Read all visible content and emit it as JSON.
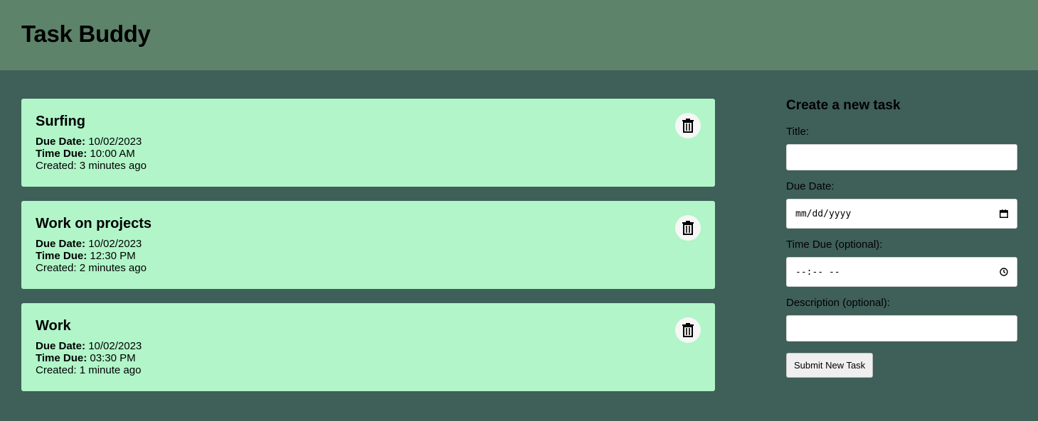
{
  "app": {
    "title": "Task Buddy"
  },
  "tasks": [
    {
      "title": "Surfing",
      "due_date_label": "Due Date:",
      "due_date": "10/02/2023",
      "time_due_label": "Time Due:",
      "time_due": "10:00 AM",
      "created": "Created: 3 minutes ago"
    },
    {
      "title": "Work on projects",
      "due_date_label": "Due Date:",
      "due_date": "10/02/2023",
      "time_due_label": "Time Due:",
      "time_due": "12:30 PM",
      "created": "Created: 2 minutes ago"
    },
    {
      "title": "Work",
      "due_date_label": "Due Date:",
      "due_date": "10/02/2023",
      "time_due_label": "Time Due:",
      "time_due": "03:30 PM",
      "created": "Created: 1 minute ago"
    }
  ],
  "form": {
    "heading": "Create a new task",
    "title_label": "Title:",
    "title_value": "",
    "due_date_label": "Due Date:",
    "due_date_placeholder": "mm/dd/yyyy",
    "time_due_label": "Time Due (optional):",
    "time_due_placeholder": "--:-- --",
    "description_label": "Description (optional):",
    "description_value": "",
    "submit_label": "Submit New Task"
  },
  "icons": {
    "delete": "trash-icon",
    "calendar": "calendar-icon",
    "clock": "clock-icon"
  },
  "colors": {
    "header_bg": "#5d846b",
    "page_bg": "#3f5f59",
    "card_bg": "#b1f5c9"
  }
}
